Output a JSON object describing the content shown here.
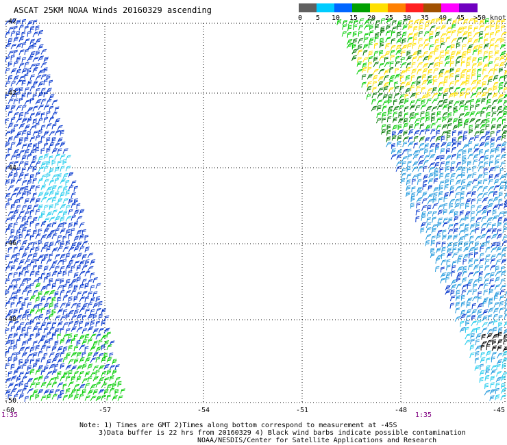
{
  "title": "ASCAT 25KM NOAA Winds 20160329 ascending",
  "colorbar": {
    "segments": [
      {
        "color": "#606060"
      },
      {
        "color": "#00ccff"
      },
      {
        "color": "#0066ff"
      },
      {
        "color": "#00a000"
      },
      {
        "color": "#ffe000"
      },
      {
        "color": "#ff8000"
      },
      {
        "color": "#ff2020"
      },
      {
        "color": "#a05000"
      },
      {
        "color": "#ff00ff"
      },
      {
        "color": "#7000c0"
      }
    ],
    "labels": [
      "0",
      "5",
      "10",
      "15",
      "20",
      "25",
      "30",
      "35",
      "40",
      "45",
      ">50 knots"
    ]
  },
  "latitudes": [
    "-42",
    "-42",
    "-44",
    "-46",
    "-48",
    "-50"
  ],
  "longitudes": [
    "-60",
    "-57",
    "-54",
    "-51",
    "-48",
    "-45"
  ],
  "times": {
    "left": "1:35",
    "right": "1:35"
  },
  "notes": {
    "line1": "Note: 1) Times are GMT 2)Times along bottom correspond to measurement at -45S",
    "line2": "3)Data buffer is 22 hrs from 20160329 4) Black wind barbs indicate possible contamination",
    "line3": "NOAA/NESDIS/Center for Satellite Applications and Research"
  },
  "wind_colors": {
    "cyan": "#22ccee",
    "blue": "#0033cc",
    "green": "#00cc00",
    "dark_green": "#007700",
    "yellow": "#ffe000",
    "black": "#000000"
  }
}
